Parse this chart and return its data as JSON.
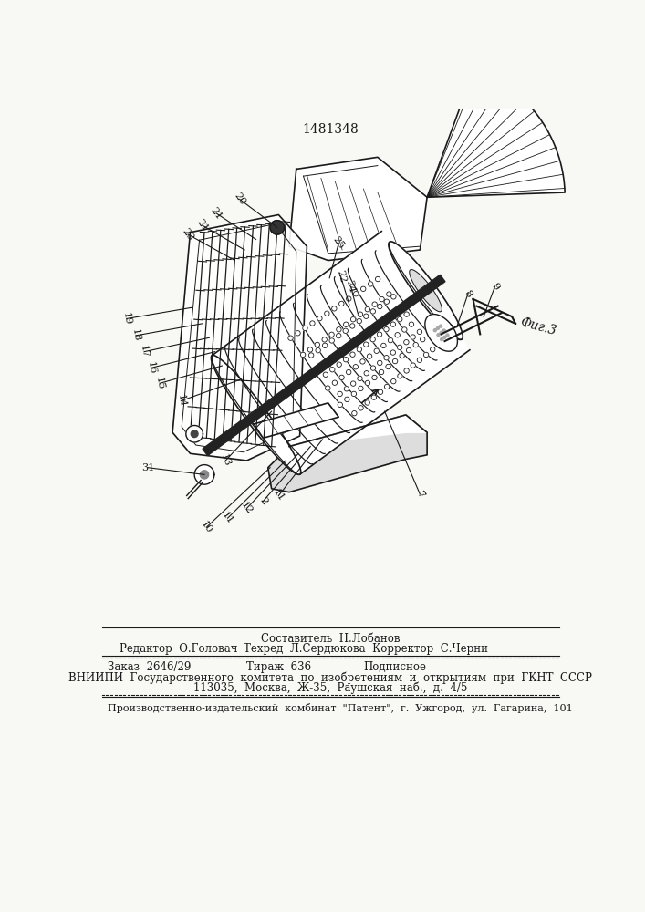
{
  "patent_number": "1481348",
  "fig_label": "Фиг.3",
  "bg_color": "#f8f8f5",
  "text_color": "#1a1a1a",
  "footer": {
    "sestavitel": "Составитель  Н.Лобанов",
    "redaktor": "Редактор  О.Головач",
    "tekhred": "Техред  Л.Сердюкова  Корректор  С.Черни",
    "zakaz": "Заказ  2646/29",
    "tirazh": "Тираж  636",
    "podpisnoe": "Подписное",
    "vniiipi": "ВНИИПИ  Государственного  комитета  по  изобретениям  и  открытиям  при  ГКНТ  СССР",
    "address": "113035,  Москва,  Ж-35,  Раушская  наб.,  д.  4/5",
    "kombinat": "Производственно-издательский  комбинат  \"Патент\",  г.  Ужгород,  ул.  Гагарина,  101"
  }
}
